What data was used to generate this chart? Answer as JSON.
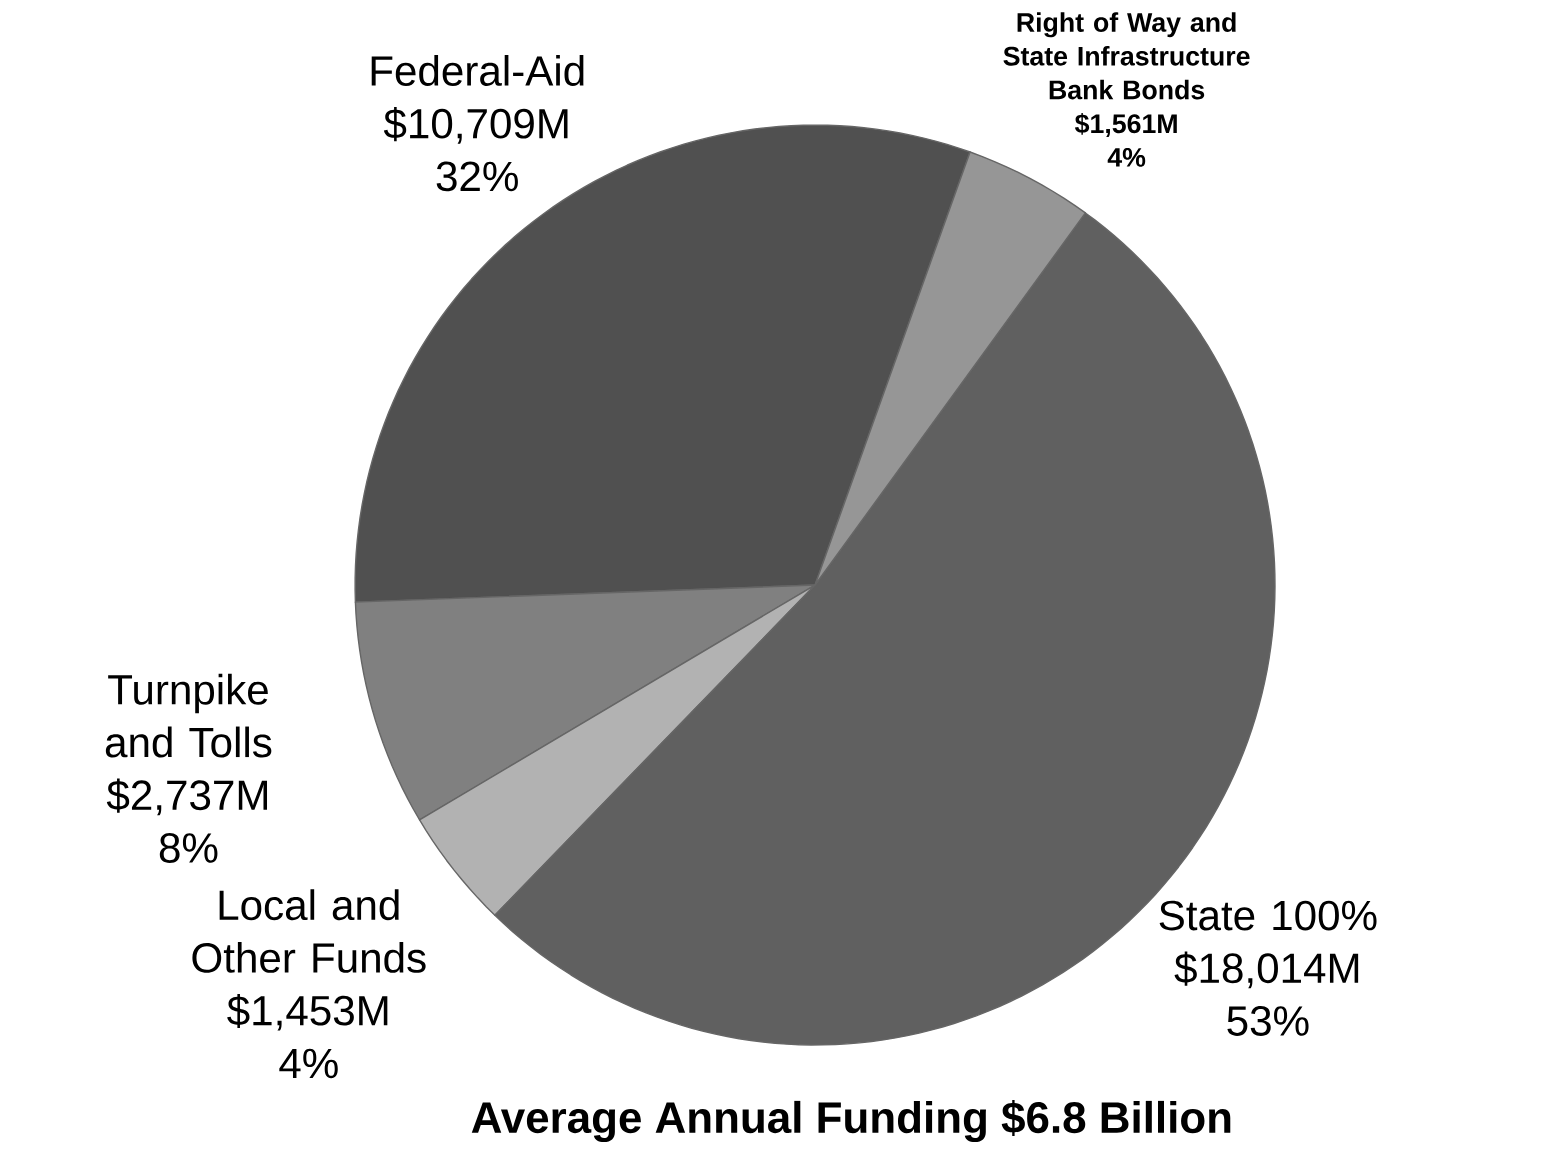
{
  "chart_data": {
    "type": "pie",
    "title": "Average Annual Funding $6.8 Billion",
    "categories": [
      "Federal-Aid",
      "Turnpike and Tolls",
      "Local and Other Funds",
      "State 100%",
      "Right of Way and State Infrastructure Bank Bonds"
    ],
    "values": [
      10709,
      2737,
      1453,
      18014,
      1561
    ],
    "value_labels": [
      "$10,709M",
      "$2,737M",
      "$1,453M",
      "$18,014M",
      "$1,561M"
    ],
    "annotations": [
      "32%",
      "8%",
      "4%",
      "53%",
      "4%"
    ],
    "colors": [
      "#505050",
      "#808080",
      "#b2b2b2",
      "#606060",
      "#969696"
    ]
  }
}
